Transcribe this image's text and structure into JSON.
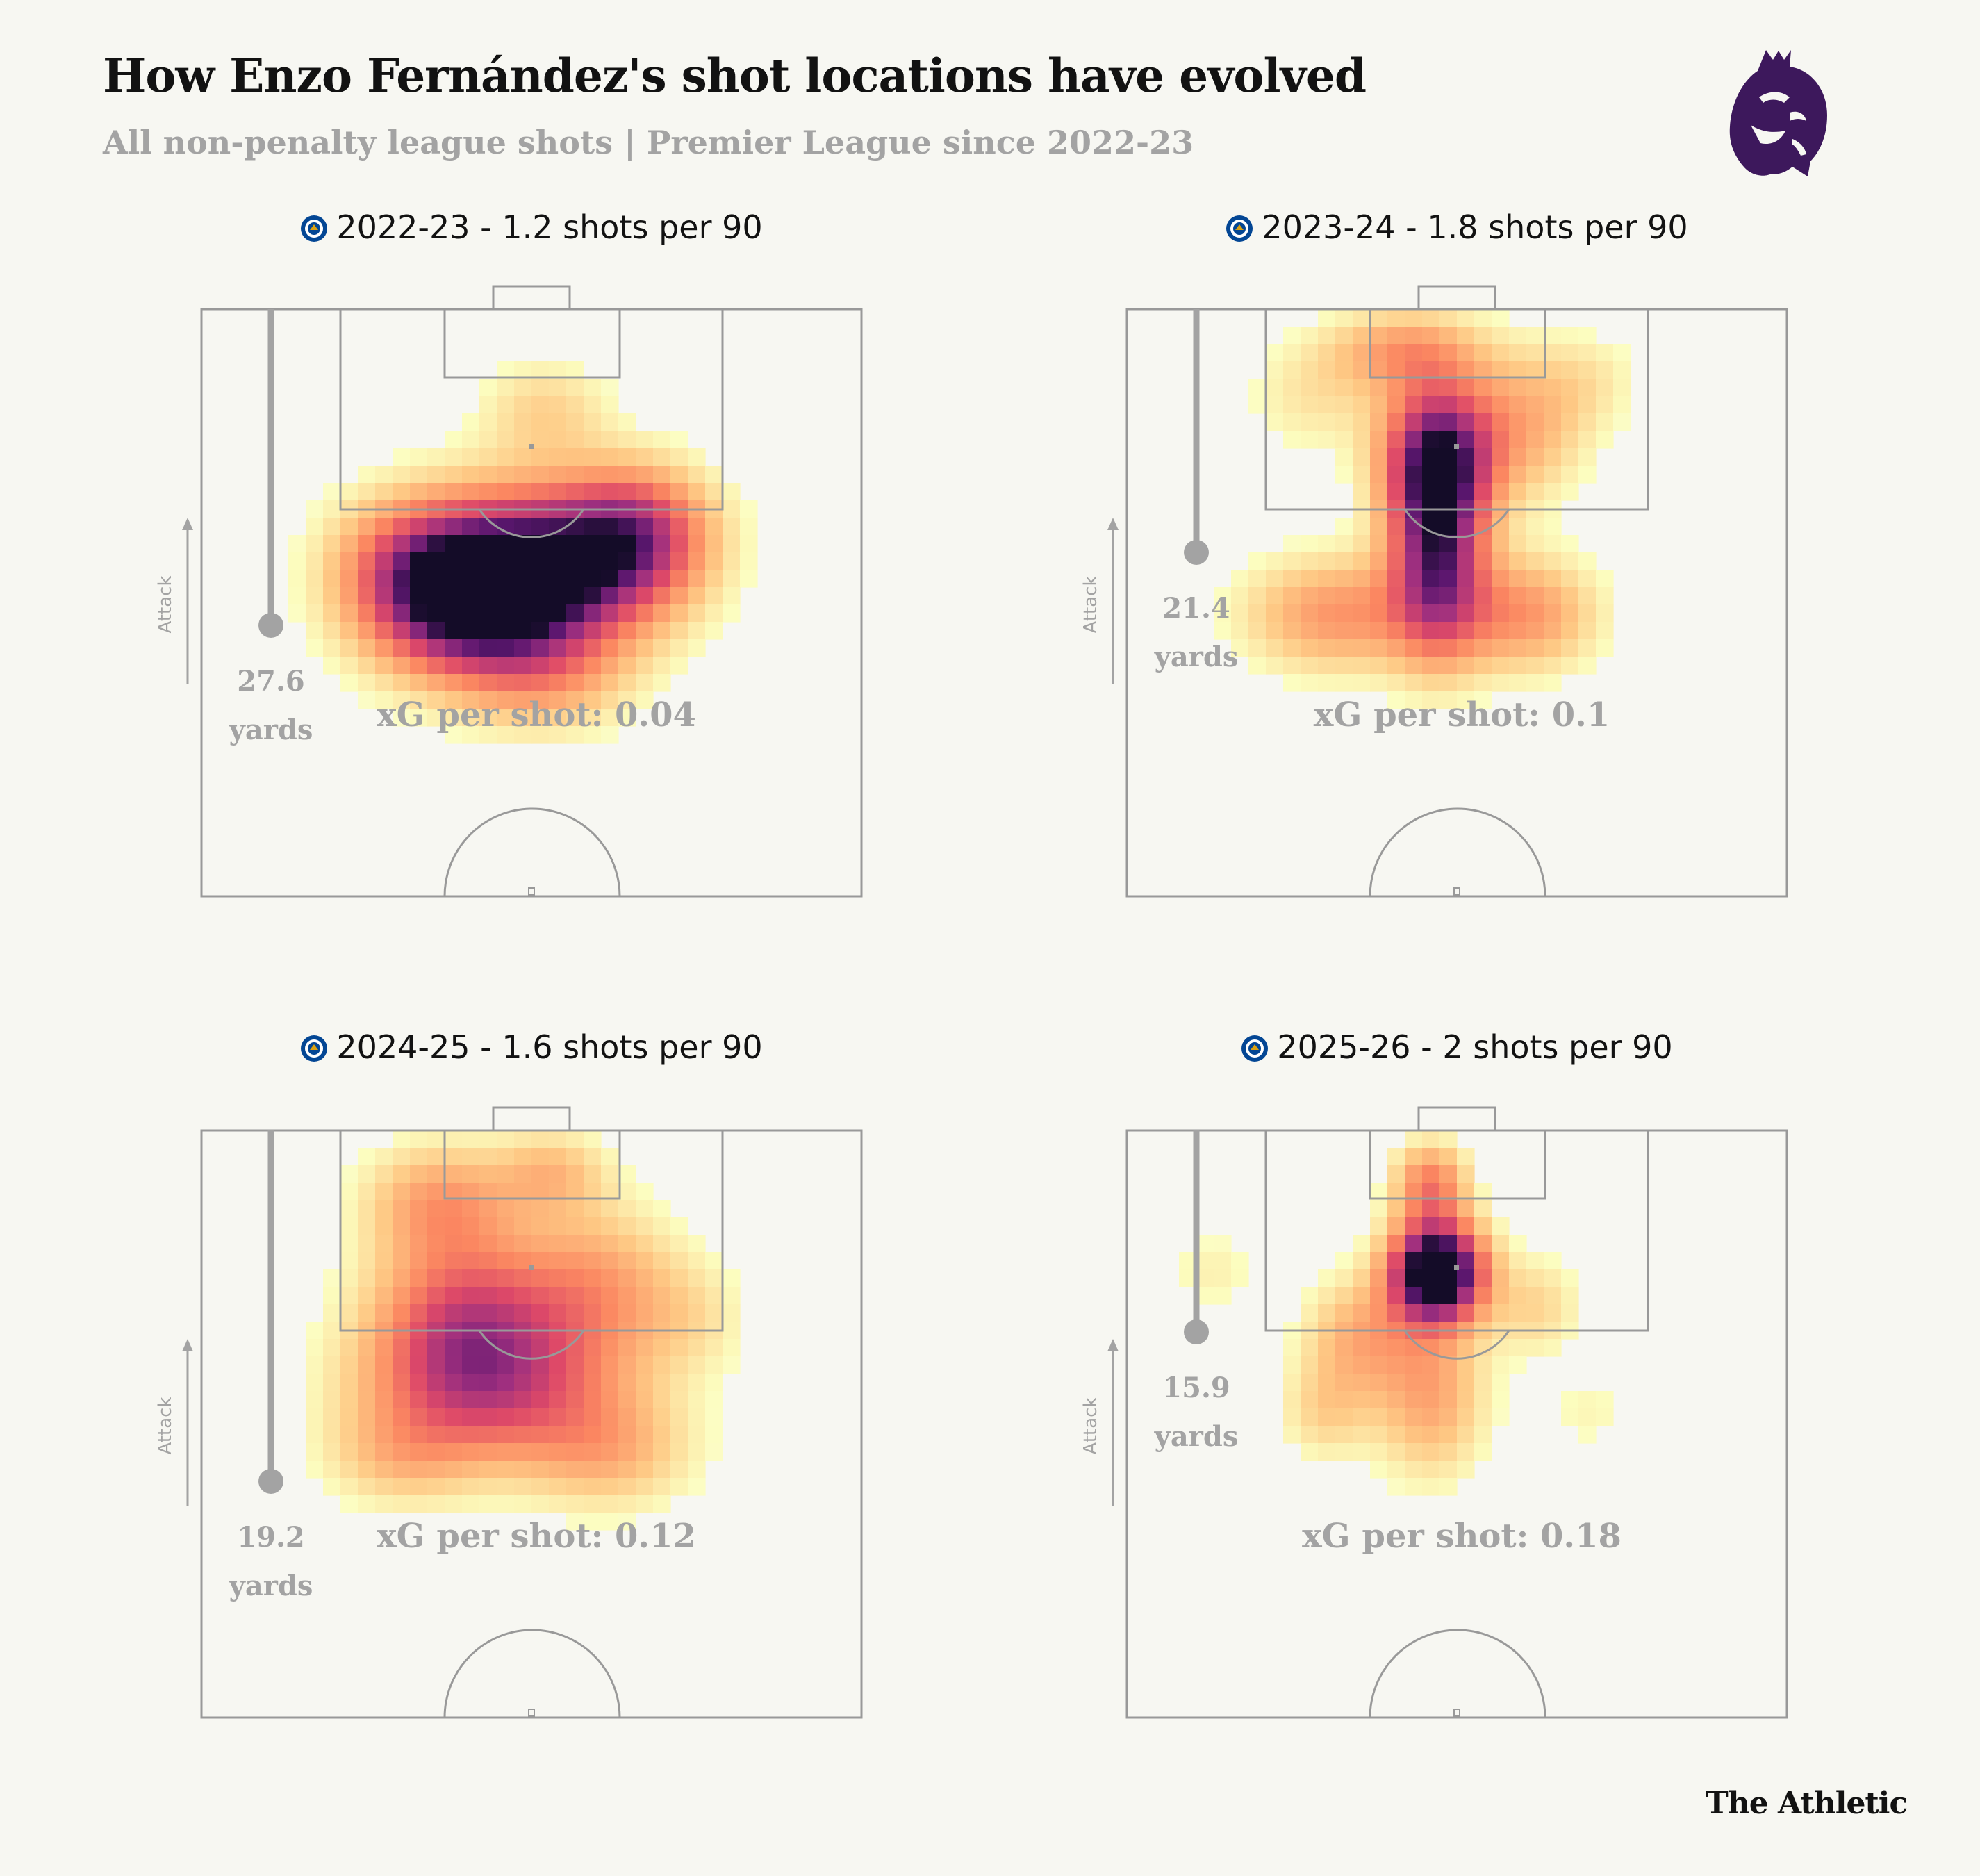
{
  "header": {
    "title": "How Enzo Fernández's shot locations have evolved",
    "subtitle": "All non-penalty league shots | Premier League since 2022-23"
  },
  "footer": {
    "brand": "The Athletic"
  },
  "colors": {
    "background": "#f7f7f2",
    "pitch_lines": "#999999",
    "annotation_grey": "#a3a3a3",
    "pl_purple": "#3d185c",
    "chelsea_blue": "#034694"
  },
  "icons": {
    "panel_badge": "chelsea-crest-icon",
    "league_logo": "premier-league-lion-icon"
  },
  "chart_data": [
    {
      "type": "heatmap",
      "title": "2022-23 - 1.2 shots per 90",
      "season": "2022-23",
      "shots_per_90": 1.2,
      "xg_label": "xG per shot: 0.04",
      "avg_distance_value": "27.6",
      "avg_distance_unit": "yards",
      "axis_label": "Attack",
      "density_hotspots": [
        {
          "x": 0.5,
          "y": 0.45,
          "w": 1.0,
          "sx": 0.13,
          "sy": 0.1
        },
        {
          "x": 0.38,
          "y": 0.5,
          "w": 0.65,
          "sx": 0.1,
          "sy": 0.09
        },
        {
          "x": 0.66,
          "y": 0.38,
          "w": 0.55,
          "sx": 0.08,
          "sy": 0.08
        },
        {
          "x": 0.52,
          "y": 0.17,
          "w": 0.2,
          "sx": 0.07,
          "sy": 0.06
        },
        {
          "x": 0.52,
          "y": 0.63,
          "w": 0.25,
          "sx": 0.09,
          "sy": 0.07
        },
        {
          "x": 0.3,
          "y": 0.42,
          "w": 0.2,
          "sx": 0.08,
          "sy": 0.08
        }
      ]
    },
    {
      "type": "heatmap",
      "title": "2023-24 - 1.8 shots per 90",
      "season": "2023-24",
      "shots_per_90": 1.8,
      "xg_label": "xG per shot: 0.1",
      "avg_distance_value": "21.4",
      "avg_distance_unit": "yards",
      "axis_label": "Attack",
      "density_hotspots": [
        {
          "x": 0.47,
          "y": 0.25,
          "w": 0.8,
          "sx": 0.06,
          "sy": 0.09
        },
        {
          "x": 0.47,
          "y": 0.42,
          "w": 0.75,
          "sx": 0.05,
          "sy": 0.12
        },
        {
          "x": 0.32,
          "y": 0.52,
          "w": 0.4,
          "sx": 0.1,
          "sy": 0.07
        },
        {
          "x": 0.6,
          "y": 0.52,
          "w": 0.4,
          "sx": 0.08,
          "sy": 0.07
        },
        {
          "x": 0.42,
          "y": 0.07,
          "w": 0.35,
          "sx": 0.08,
          "sy": 0.05
        },
        {
          "x": 0.6,
          "y": 0.2,
          "w": 0.3,
          "sx": 0.07,
          "sy": 0.09
        },
        {
          "x": 0.28,
          "y": 0.15,
          "w": 0.15,
          "sx": 0.07,
          "sy": 0.07
        },
        {
          "x": 0.7,
          "y": 0.12,
          "w": 0.12,
          "sx": 0.06,
          "sy": 0.06
        }
      ]
    },
    {
      "type": "heatmap",
      "title": "2024-25 - 1.6 shots per 90",
      "season": "2024-25",
      "shots_per_90": 1.6,
      "xg_label": "xG per shot: 0.12",
      "avg_distance_value": "19.2",
      "avg_distance_unit": "yards",
      "axis_label": "Attack",
      "density_hotspots": [
        {
          "x": 0.4,
          "y": 0.32,
          "w": 0.55,
          "sx": 0.1,
          "sy": 0.1
        },
        {
          "x": 0.44,
          "y": 0.45,
          "w": 0.5,
          "sx": 0.14,
          "sy": 0.09
        },
        {
          "x": 0.6,
          "y": 0.27,
          "w": 0.35,
          "sx": 0.09,
          "sy": 0.1
        },
        {
          "x": 0.36,
          "y": 0.12,
          "w": 0.35,
          "sx": 0.08,
          "sy": 0.07
        },
        {
          "x": 0.53,
          "y": 0.07,
          "w": 0.25,
          "sx": 0.06,
          "sy": 0.05
        },
        {
          "x": 0.62,
          "y": 0.55,
          "w": 0.25,
          "sx": 0.09,
          "sy": 0.07
        },
        {
          "x": 0.3,
          "y": 0.56,
          "w": 0.2,
          "sx": 0.08,
          "sy": 0.06
        },
        {
          "x": 0.75,
          "y": 0.32,
          "w": 0.12,
          "sx": 0.06,
          "sy": 0.07
        }
      ]
    },
    {
      "type": "heatmap",
      "title": "2025-26 - 2 shots per 90",
      "season": "2025-26",
      "shots_per_90": 2,
      "xg_label": "xG per shot: 0.18",
      "avg_distance_value": "15.9",
      "avg_distance_unit": "yards",
      "axis_label": "Attack",
      "density_hotspots": [
        {
          "x": 0.47,
          "y": 0.24,
          "w": 1.25,
          "sx": 0.05,
          "sy": 0.06
        },
        {
          "x": 0.46,
          "y": 0.09,
          "w": 0.45,
          "sx": 0.04,
          "sy": 0.05
        },
        {
          "x": 0.46,
          "y": 0.45,
          "w": 0.35,
          "sx": 0.06,
          "sy": 0.1
        },
        {
          "x": 0.35,
          "y": 0.35,
          "w": 0.3,
          "sx": 0.06,
          "sy": 0.07
        },
        {
          "x": 0.3,
          "y": 0.48,
          "w": 0.2,
          "sx": 0.05,
          "sy": 0.06
        },
        {
          "x": 0.62,
          "y": 0.3,
          "w": 0.2,
          "sx": 0.05,
          "sy": 0.06
        },
        {
          "x": 0.13,
          "y": 0.24,
          "w": 0.12,
          "sx": 0.05,
          "sy": 0.05
        },
        {
          "x": 0.7,
          "y": 0.48,
          "w": 0.1,
          "sx": 0.05,
          "sy": 0.05
        }
      ]
    }
  ]
}
